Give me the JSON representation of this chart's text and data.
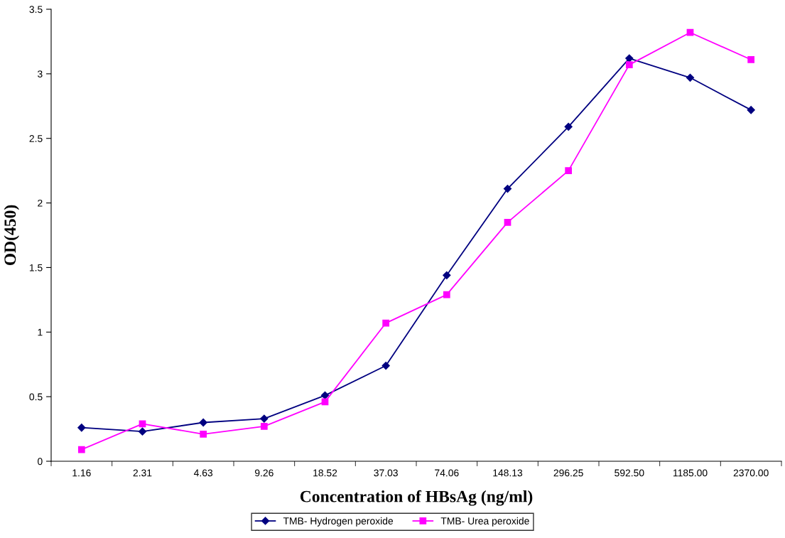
{
  "chart_data": {
    "type": "line",
    "xlabel": "Concentration of HBsAg (ng/ml)",
    "ylabel": "OD(450)",
    "categories": [
      "1.16",
      "2.31",
      "4.63",
      "9.26",
      "18.52",
      "37.03",
      "74.06",
      "148.13",
      "296.25",
      "592.50",
      "1185.00",
      "2370.00"
    ],
    "series": [
      {
        "name": "TMB- Hydrogen peroxide",
        "color": "#000080",
        "marker": "diamond",
        "values": [
          0.26,
          0.23,
          0.3,
          0.33,
          0.51,
          0.74,
          1.44,
          2.11,
          2.59,
          3.12,
          2.97,
          2.72
        ]
      },
      {
        "name": "TMB- Urea peroxide",
        "color": "#ff00ff",
        "marker": "square",
        "values": [
          0.09,
          0.29,
          0.21,
          0.27,
          0.46,
          1.07,
          1.29,
          1.85,
          2.25,
          3.07,
          3.32,
          3.11
        ]
      }
    ],
    "ylim": [
      0,
      3.5
    ],
    "yticks": [
      0,
      0.5,
      1,
      1.5,
      2,
      2.5,
      3,
      3.5
    ],
    "grid": false,
    "legend": "bottom",
    "line_style": "solid"
  }
}
